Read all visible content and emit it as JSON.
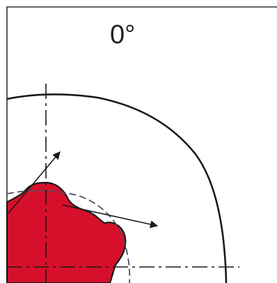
{
  "diagram": {
    "angle_label": "0°",
    "colors": {
      "background": "#ffffff",
      "line": "#1a1a1a",
      "rotor_fill": "#d6102a",
      "dashed_guide": "#4a4f6a",
      "frame": "#333333"
    },
    "elements": [
      "frame",
      "outer-arc",
      "rotor",
      "reference-circle",
      "vertical-axis",
      "horizontal-axis",
      "upper-arrow",
      "right-arrow"
    ]
  }
}
